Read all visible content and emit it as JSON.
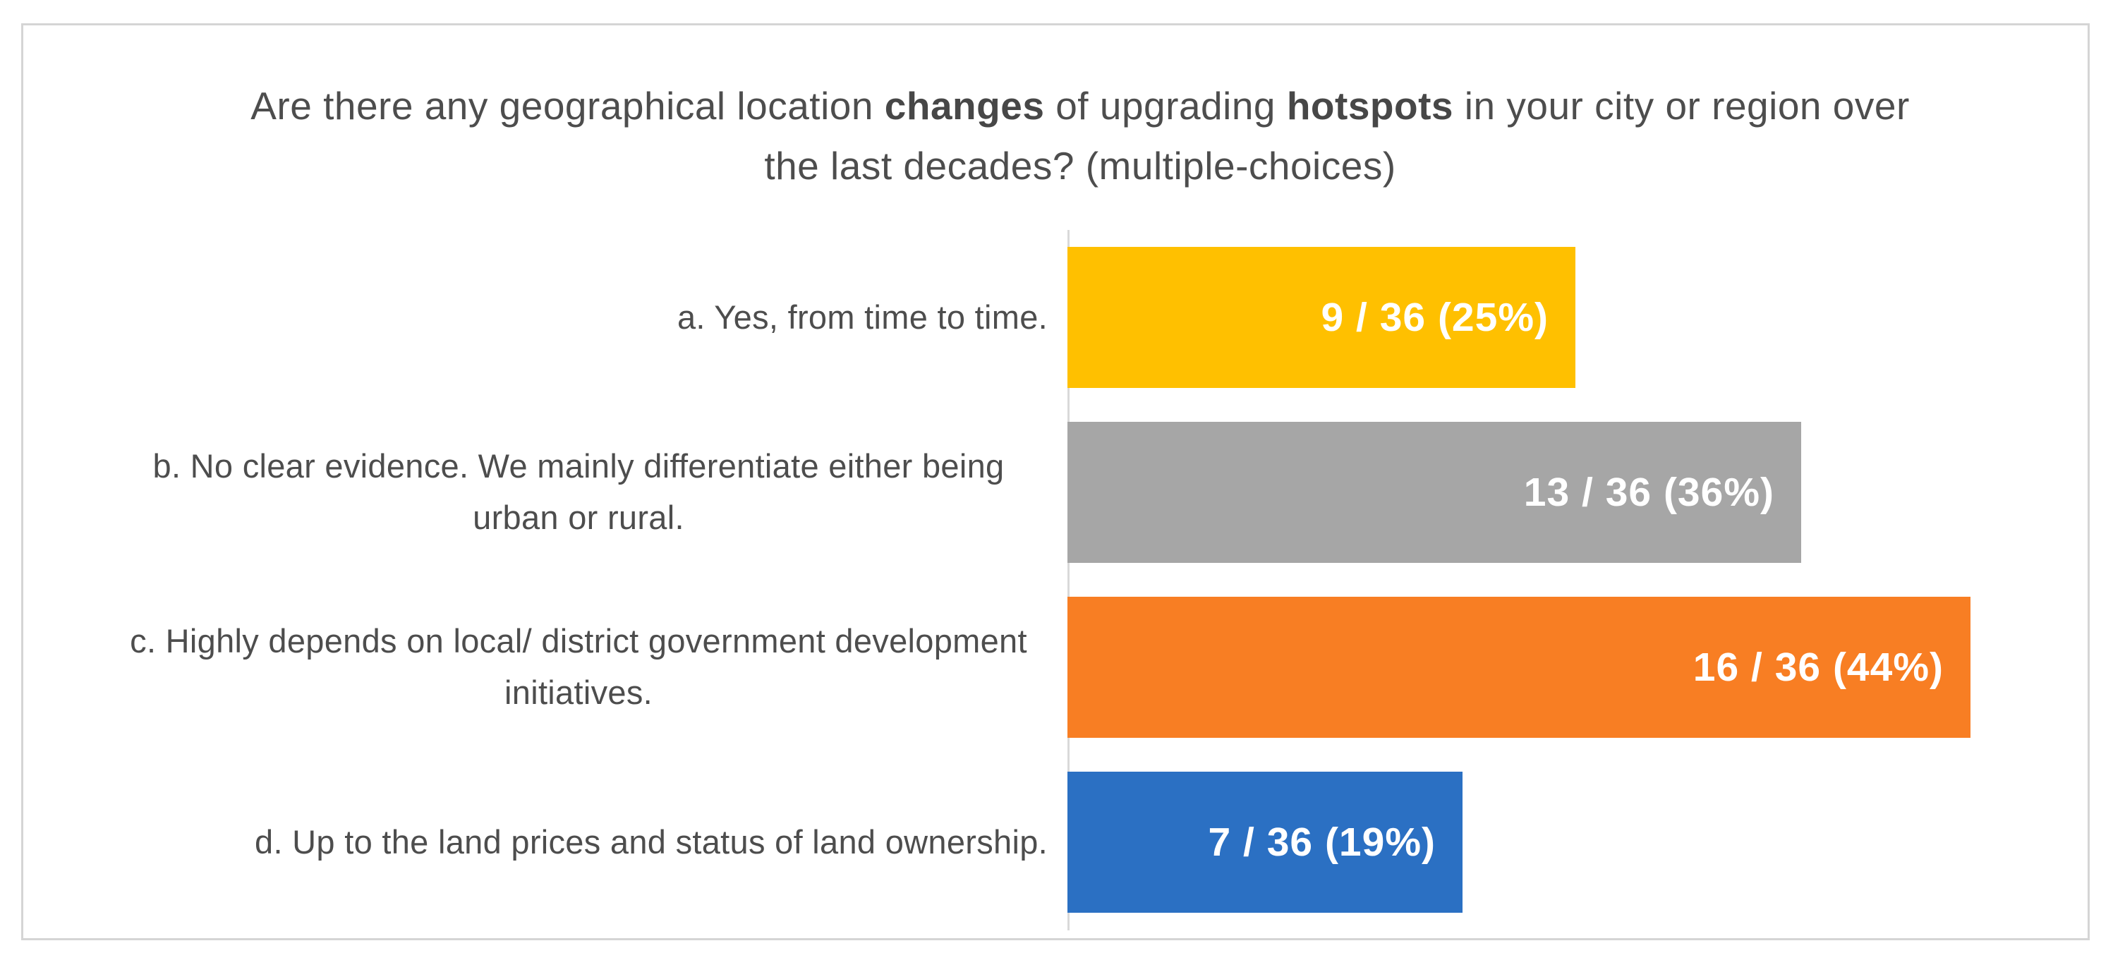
{
  "chart_data": {
    "type": "bar",
    "orientation": "horizontal",
    "title": "Are there any geographical location changes of upgrading hotspots in your city or region over the last decades? (multiple-choices)",
    "title_segments": [
      {
        "text": "Are there any geographical location ",
        "bold": false
      },
      {
        "text": "changes",
        "bold": true
      },
      {
        "text": " of upgrading ",
        "bold": false
      },
      {
        "text": "hotspots",
        "bold": true
      },
      {
        "text": " in your city or region over the last decades? (multiple-choices)",
        "bold": false
      }
    ],
    "categories": [
      "a. Yes, from time to time.",
      "b. No clear evidence. We mainly differentiate either being urban or rural.",
      "c. Highly depends on local/ district government development initiatives.",
      "d. Up to the land prices and status of land ownership."
    ],
    "values": [
      9,
      13,
      16,
      7
    ],
    "total_responses": 36,
    "percentages": [
      25,
      36,
      44,
      19
    ],
    "value_labels": [
      "9 / 36 (25%)",
      "13 / 36 (36%)",
      "16 / 36 (44%)",
      "7 / 36 (19%)"
    ],
    "bar_colors": [
      "#FFC000",
      "#A6A6A6",
      "#F87E23",
      "#2B70C3"
    ],
    "value_label_color": "#FFFFFF",
    "value_label_position": "inside-end",
    "xlim": [
      0,
      18.5
    ],
    "grid": false,
    "legend": false,
    "axis_line_color": "#D9D9D9",
    "label_text_color": "#4D4D4D",
    "frame_border_color": "#D5D5D5",
    "background_color": "#FFFFFF"
  }
}
